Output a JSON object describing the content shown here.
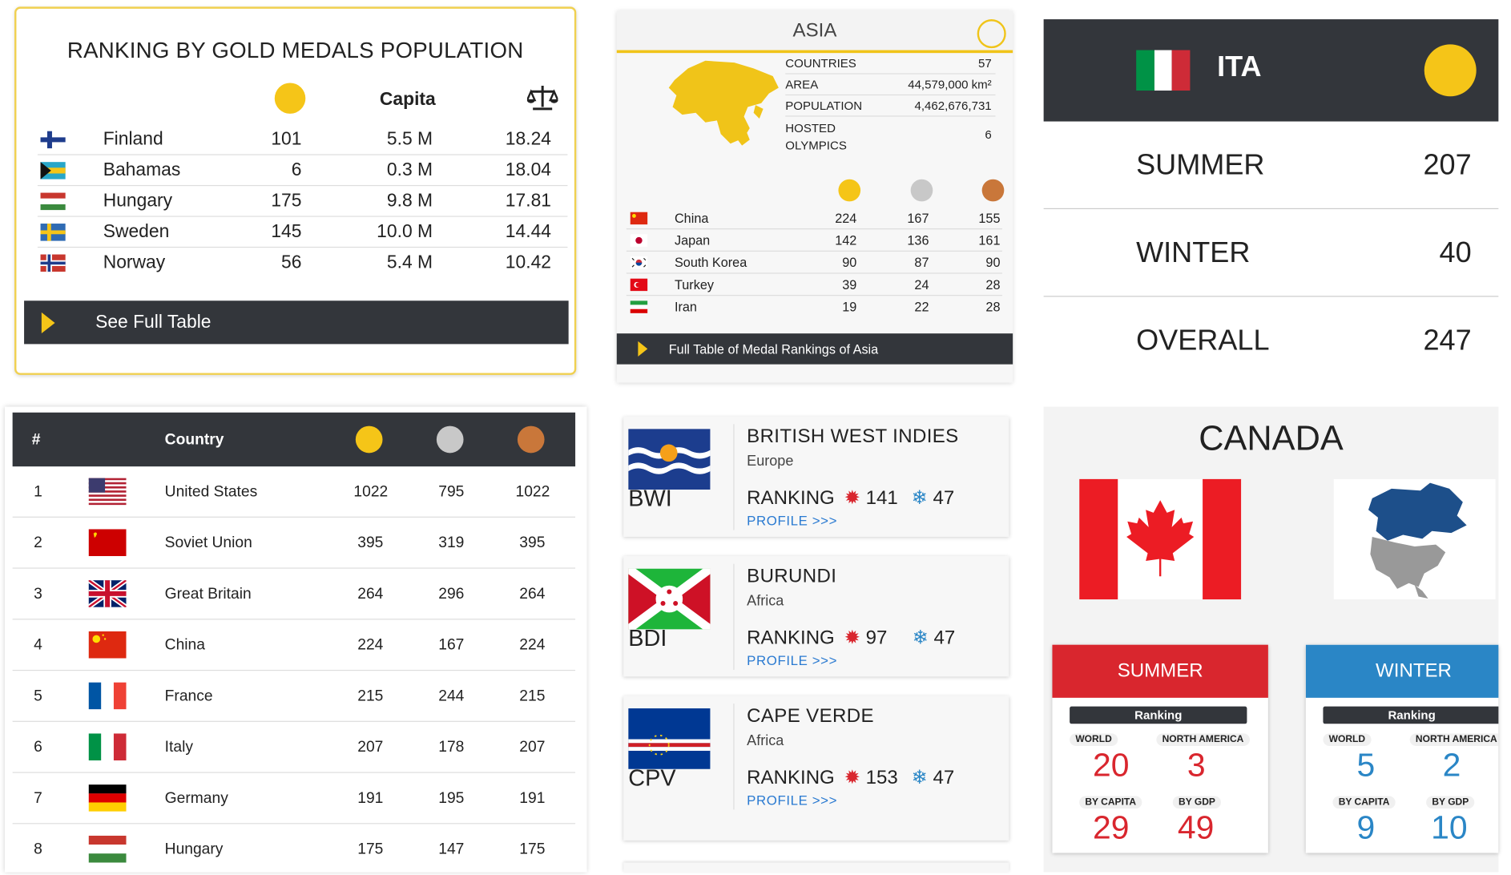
{
  "card_gold_per_capita": {
    "title": "RANKING BY GOLD MEDALS POPULATION",
    "col_capita": "Capita",
    "rows": [
      {
        "country": "Finland",
        "gold": "101",
        "capita": "5.5 M",
        "ratio": "18.24"
      },
      {
        "country": "Bahamas",
        "gold": "6",
        "capita": "0.3 M",
        "ratio": "18.04"
      },
      {
        "country": "Hungary",
        "gold": "175",
        "capita": "9.8 M",
        "ratio": "17.81"
      },
      {
        "country": "Sweden",
        "gold": "145",
        "capita": "10.0 M",
        "ratio": "14.44"
      },
      {
        "country": "Norway",
        "gold": "56",
        "capita": "5.4 M",
        "ratio": "10.42"
      }
    ],
    "cta": "See Full Table"
  },
  "card_asia": {
    "title": "ASIA",
    "info": [
      {
        "label": "COUNTRIES",
        "value": "57"
      },
      {
        "label": "AREA",
        "value": "44,579,000 km²"
      },
      {
        "label": "POPULATION",
        "value": "4,462,676,731"
      },
      {
        "label": "HOSTED OLYMPICS",
        "value": "6"
      }
    ],
    "rows": [
      {
        "country": "China",
        "gold": "224",
        "silver": "167",
        "bronze": "155"
      },
      {
        "country": "Japan",
        "gold": "142",
        "silver": "136",
        "bronze": "161"
      },
      {
        "country": "South Korea",
        "gold": "90",
        "silver": "87",
        "bronze": "90"
      },
      {
        "country": "Turkey",
        "gold": "39",
        "silver": "24",
        "bronze": "28"
      },
      {
        "country": "Iran",
        "gold": "19",
        "silver": "22",
        "bronze": "28"
      }
    ],
    "cta": "Full Table of Medal Rankings of Asia",
    "colors": {
      "accent": "#f0c419",
      "dark": "#33363b"
    }
  },
  "card_ita": {
    "code": "ITA",
    "rows": [
      {
        "label": "SUMMER",
        "value": "207"
      },
      {
        "label": "WINTER",
        "value": "40"
      },
      {
        "label": "OVERALL",
        "value": "247"
      }
    ]
  },
  "card_all_time": {
    "headers": {
      "rank": "#",
      "country": "Country"
    },
    "rows": [
      {
        "rank": "1",
        "country": "United States",
        "gold": "1022",
        "silver": "795",
        "bronze": "1022"
      },
      {
        "rank": "2",
        "country": "Soviet Union",
        "gold": "395",
        "silver": "319",
        "bronze": "395"
      },
      {
        "rank": "3",
        "country": "Great Britain",
        "gold": "264",
        "silver": "296",
        "bronze": "264"
      },
      {
        "rank": "4",
        "country": "China",
        "gold": "224",
        "silver": "167",
        "bronze": "224"
      },
      {
        "rank": "5",
        "country": "France",
        "gold": "215",
        "silver": "244",
        "bronze": "215"
      },
      {
        "rank": "6",
        "country": "Italy",
        "gold": "207",
        "silver": "178",
        "bronze": "207"
      },
      {
        "rank": "7",
        "country": "Germany",
        "gold": "191",
        "silver": "195",
        "bronze": "191"
      },
      {
        "rank": "8",
        "country": "Hungary",
        "gold": "175",
        "silver": "147",
        "bronze": "175"
      }
    ]
  },
  "card_profiles": {
    "ranking_label": "RANKING",
    "profile_link": "PROFILE >>>",
    "items": [
      {
        "code": "BWI",
        "name": "BRITISH WEST INDIES",
        "continent": "Europe",
        "summer": "141",
        "winter": "47"
      },
      {
        "code": "BDI",
        "name": "BURUNDI",
        "continent": "Africa",
        "summer": "97",
        "winter": "47"
      },
      {
        "code": "CPV",
        "name": "CAPE VERDE",
        "continent": "Africa",
        "summer": "153",
        "winter": "47"
      }
    ]
  },
  "card_canada": {
    "title": "CANADA",
    "ranking_label": "Ranking",
    "summer": {
      "label": "SUMMER",
      "world_label": "WORLD",
      "region_label": "NORTH AMERICA",
      "capita_label": "BY CAPITA",
      "gdp_label": "BY GDP",
      "world": "20",
      "region": "3",
      "capita": "29",
      "gdp": "49",
      "color": "#d9262e"
    },
    "winter": {
      "label": "WINTER",
      "world_label": "WORLD",
      "region_label": "NORTH AMERICA",
      "capita_label": "BY CAPITA",
      "gdp_label": "BY GDP",
      "world": "5",
      "region": "2",
      "capita": "9",
      "gdp": "10",
      "color": "#2a86c6"
    }
  }
}
